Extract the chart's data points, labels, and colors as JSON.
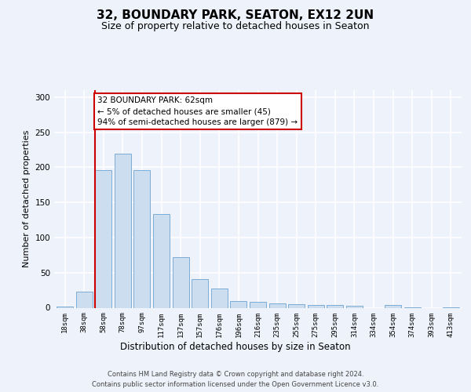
{
  "title1": "32, BOUNDARY PARK, SEATON, EX12 2UN",
  "title2": "Size of property relative to detached houses in Seaton",
  "xlabel": "Distribution of detached houses by size in Seaton",
  "ylabel": "Number of detached properties",
  "bar_labels": [
    "18sqm",
    "38sqm",
    "58sqm",
    "78sqm",
    "97sqm",
    "117sqm",
    "137sqm",
    "157sqm",
    "176sqm",
    "196sqm",
    "216sqm",
    "235sqm",
    "255sqm",
    "275sqm",
    "295sqm",
    "314sqm",
    "334sqm",
    "354sqm",
    "374sqm",
    "393sqm",
    "413sqm"
  ],
  "bar_values": [
    2,
    23,
    196,
    220,
    196,
    134,
    72,
    41,
    27,
    9,
    8,
    6,
    5,
    4,
    4,
    3,
    0,
    4,
    1,
    0,
    1
  ],
  "bar_color": "#ccddf0",
  "bar_edge_color": "#7badd6",
  "vline_color": "#cc0000",
  "vline_bar_idx": 2,
  "annotation_title": "32 BOUNDARY PARK: 62sqm",
  "annotation_line1": "← 5% of detached houses are smaller (45)",
  "annotation_line2": "94% of semi-detached houses are larger (879) →",
  "annotation_box_facecolor": "#ffffff",
  "annotation_box_edgecolor": "#cc0000",
  "ylim": [
    0,
    310
  ],
  "yticks": [
    0,
    50,
    100,
    150,
    200,
    250,
    300
  ],
  "footnote1": "Contains HM Land Registry data © Crown copyright and database right 2024.",
  "footnote2": "Contains public sector information licensed under the Open Government Licence v3.0.",
  "bg_color": "#eef2fa",
  "grid_color": "#ffffff",
  "title1_fontsize": 11,
  "title2_fontsize": 9,
  "xlabel_fontsize": 8.5,
  "ylabel_fontsize": 8,
  "tick_fontsize": 6.5,
  "footnote_fontsize": 6,
  "ann_fontsize": 7.5
}
